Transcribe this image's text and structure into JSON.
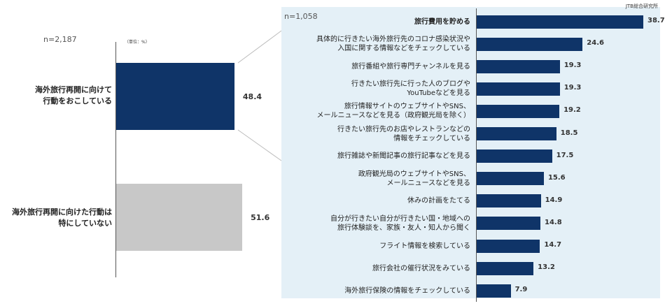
{
  "colors": {
    "navy": "#0f3468",
    "gray": "#c8c8c8",
    "panel": "#e4f0f7"
  },
  "source": "JTB総合研究所",
  "left": {
    "n": "n=2,187",
    "unit": "（単位：%）",
    "bars": [
      {
        "label_lines": [
          "海外旅行再開に向けて",
          "行動をおこしている"
        ],
        "value": 48.4,
        "value_text": "48.4",
        "color": "#0f3468"
      },
      {
        "label_lines": [
          "海外旅行再開に向けた行動は",
          "特にしていない"
        ],
        "value": 51.6,
        "value_text": "51.6",
        "color": "#c8c8c8"
      }
    ]
  },
  "right": {
    "n": "n=1,058"
  },
  "chart_data": [
    {
      "type": "bar",
      "orientation": "horizontal",
      "categories": [
        "海外旅行再開に向けて行動をおこしている",
        "海外旅行再開に向けた行動は特にしていない"
      ],
      "values": [
        48.4,
        51.6
      ],
      "n": "n=2,187",
      "unit": "（単位：%）"
    },
    {
      "type": "bar",
      "orientation": "horizontal",
      "n": "n=1,058",
      "categories": [
        [
          "旅行費用を貯める"
        ],
        [
          "具体的に行きたい海外旅行先のコロナ感染状況や",
          "入国に関する情報などをチェックしている"
        ],
        [
          "旅行番組や旅行専門チャンネルを見る"
        ],
        [
          "行きたい旅行先に行った人のブログや",
          "YouTubeなどを見る"
        ],
        [
          "旅行情報サイトのウェブサイトやSNS、",
          "メールニュースなどを見る（政府観光局を除く）"
        ],
        [
          "行きたい旅行先のお店やレストランなどの",
          "情報をチェックしている"
        ],
        [
          "旅行雑誌や新聞記事の旅行記事などを見る"
        ],
        [
          "政府観光局のウェブサイトやSNS、",
          "メールニュースなどを見る"
        ],
        [
          "休みの計画をたてる"
        ],
        [
          "自分が行きたい自分が行きたい国・地域への",
          "旅行体験談を、家族・友人・知人から聞く"
        ],
        [
          "フライト情報を検索している"
        ],
        [
          "旅行会社の催行状況をみている"
        ],
        [
          "海外旅行保険の情報をチェックしている"
        ]
      ],
      "values": [
        38.7,
        24.6,
        19.3,
        19.3,
        19.2,
        18.5,
        17.5,
        15.6,
        14.9,
        14.8,
        14.7,
        13.2,
        7.9
      ],
      "value_texts": [
        "38.7",
        "24.6",
        "19.3",
        "19.3",
        "19.2",
        "18.5",
        "17.5",
        "15.6",
        "14.9",
        "14.8",
        "14.7",
        "13.2",
        "7.9"
      ],
      "bold_first_label": true
    }
  ]
}
